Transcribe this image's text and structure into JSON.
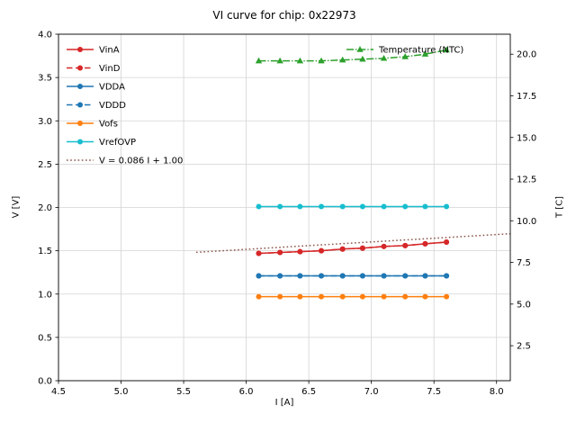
{
  "chart_data": {
    "type": "line",
    "title": "VI curve for chip: 0x22973",
    "xlabel": "I [A]",
    "ylabel": "V [V]",
    "ylabel_right": "T [C]",
    "xlim": [
      4.5,
      8.11
    ],
    "ylim": [
      0.0,
      4.0
    ],
    "ylim_right": [
      0.4,
      21.2
    ],
    "xticks": [
      4.5,
      5.0,
      5.5,
      6.0,
      6.5,
      7.0,
      7.5,
      8.0
    ],
    "yticks": [
      0.0,
      0.5,
      1.0,
      1.5,
      2.0,
      2.5,
      3.0,
      3.5,
      4.0
    ],
    "yticks_right": [
      2.5,
      5.0,
      7.5,
      10.0,
      12.5,
      15.0,
      17.5,
      20.0
    ],
    "grid": true,
    "x": [
      6.1,
      6.27,
      6.43,
      6.6,
      6.77,
      6.93,
      7.1,
      7.27,
      7.43,
      7.6
    ],
    "series": [
      {
        "name": "VinA",
        "color": "#d62728",
        "linestyle": "solid",
        "marker": "circle",
        "axis": "left",
        "values": [
          1.47,
          1.48,
          1.49,
          1.5,
          1.52,
          1.53,
          1.55,
          1.56,
          1.58,
          1.6
        ]
      },
      {
        "name": "VinD",
        "color": "#d62728",
        "linestyle": "dashed",
        "marker": "circle",
        "axis": "left",
        "values": [
          1.47,
          1.48,
          1.49,
          1.5,
          1.52,
          1.53,
          1.55,
          1.56,
          1.58,
          1.6
        ]
      },
      {
        "name": "VDDA",
        "color": "#1f77b4",
        "linestyle": "solid",
        "marker": "circle",
        "axis": "left",
        "values": [
          1.21,
          1.21,
          1.21,
          1.21,
          1.21,
          1.21,
          1.21,
          1.21,
          1.21,
          1.21
        ]
      },
      {
        "name": "VDDD",
        "color": "#1f77b4",
        "linestyle": "dashed",
        "marker": "circle",
        "axis": "left",
        "values": [
          1.21,
          1.21,
          1.21,
          1.21,
          1.21,
          1.21,
          1.21,
          1.21,
          1.21,
          1.21
        ]
      },
      {
        "name": "Vofs",
        "color": "#ff7f0e",
        "linestyle": "solid",
        "marker": "circle",
        "axis": "left",
        "values": [
          0.97,
          0.97,
          0.97,
          0.97,
          0.97,
          0.97,
          0.97,
          0.97,
          0.97,
          0.97
        ]
      },
      {
        "name": "VrefOVP",
        "color": "#17becf",
        "linestyle": "solid",
        "marker": "circle",
        "axis": "left",
        "values": [
          2.01,
          2.01,
          2.01,
          2.01,
          2.01,
          2.01,
          2.01,
          2.01,
          2.01,
          2.01
        ]
      },
      {
        "name": "V = 0.086 I + 1.00",
        "color": "#8c564b",
        "linestyle": "dotted",
        "marker": "none",
        "axis": "left",
        "x": [
          5.6,
          8.11
        ],
        "values": [
          1.482,
          1.697
        ]
      },
      {
        "name": "Temperature (NTC)",
        "color": "#2ca02c",
        "linestyle": "dashdot",
        "marker": "triangle",
        "axis": "right",
        "values": [
          19.6,
          19.6,
          19.6,
          19.6,
          19.65,
          19.7,
          19.75,
          19.85,
          20.0,
          20.25
        ]
      }
    ],
    "legend": [
      {
        "loc": "upper left",
        "series": [
          0,
          1,
          2,
          3,
          4,
          5,
          6
        ]
      },
      {
        "loc": "upper right",
        "series": [
          7
        ]
      }
    ]
  }
}
